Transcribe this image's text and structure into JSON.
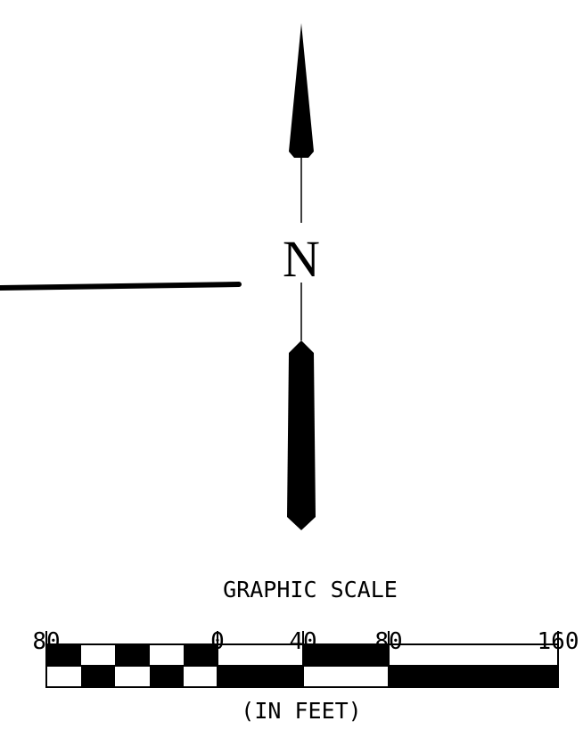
{
  "north_arrow": {
    "label": "N"
  },
  "scale": {
    "title": "GRAPHIC SCALE",
    "units": "(IN FEET)",
    "tick_labels": [
      "80",
      "0",
      "40",
      "80",
      "160"
    ]
  }
}
